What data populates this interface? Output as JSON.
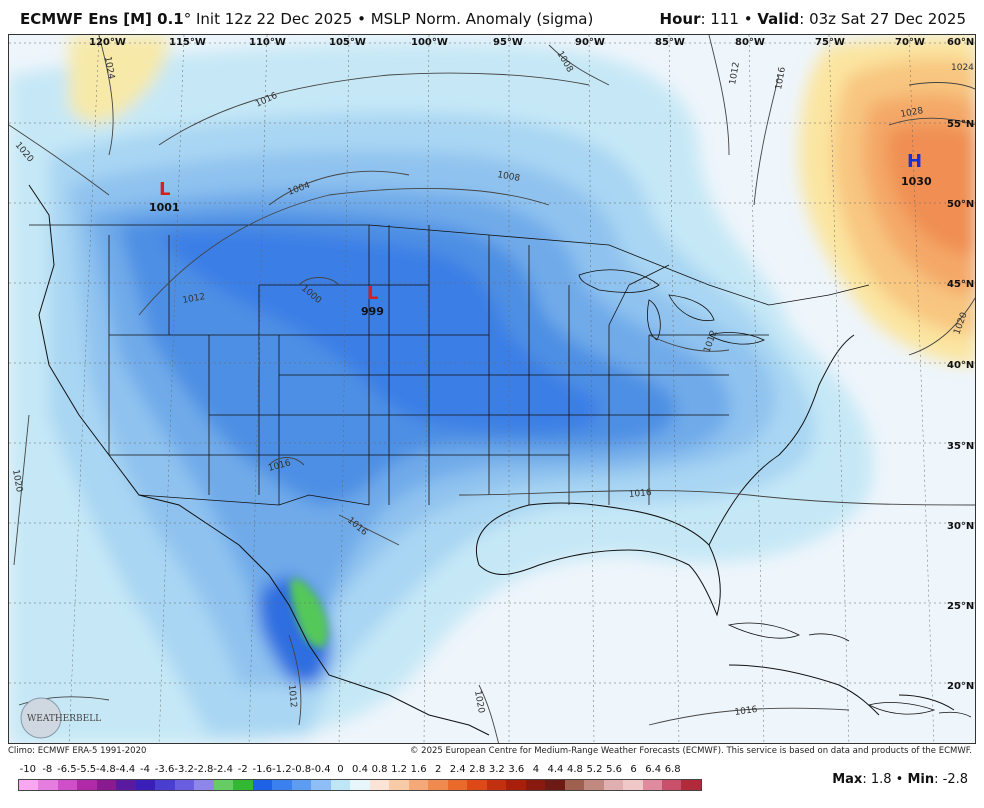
{
  "header": {
    "model": "ECMWF Ens [M] 0.1",
    "degree": "°",
    "init": " Init 12z 22 Dec 2025",
    "sep1": " • ",
    "field": "MSLP Norm. Anomaly (sigma)",
    "hour_label": "Hour",
    "hour_value": ": 111",
    "sep2": " • ",
    "valid_label": "Valid",
    "valid_value": ": 03z Sat 27 Dec 2025"
  },
  "map": {
    "lon_labels": [
      "120°W",
      "115°W",
      "110°W",
      "105°W",
      "100°W",
      "95°W",
      "90°W",
      "85°W",
      "80°W",
      "75°W",
      "70°W"
    ],
    "lat_labels": [
      "60°N",
      "55°N",
      "50°N",
      "45°N",
      "40°N",
      "35°N",
      "30°N",
      "25°N",
      "20°N"
    ],
    "isobar_labels": [
      "1024",
      "1020",
      "1016",
      "1012",
      "1008",
      "1004",
      "1000",
      "1008",
      "1012",
      "1016",
      "1024",
      "1028",
      "1020",
      "1020",
      "1016",
      "1012",
      "1016",
      "1016",
      "1012",
      "1020",
      "1016"
    ],
    "pressure_centers": [
      {
        "letter": "L",
        "value": "1001",
        "color": "#d42020"
      },
      {
        "letter": "L",
        "value": "999",
        "color": "#d42020"
      },
      {
        "letter": "H",
        "value": "1030",
        "color": "#1a2fd6"
      }
    ],
    "logo": "WEATHERBELL"
  },
  "footer": {
    "climo": "Climo: ECMWF ERA-5 1991-2020",
    "copyright": "© 2025 European Centre for Medium-Range Weather Forecasts (ECMWF). This service is based on data and products of the ECMWF."
  },
  "colorbar": {
    "labels": [
      "-10",
      "-8",
      "-6.5",
      "-5.5",
      "-4.8",
      "-4.4",
      "-4",
      "-3.6",
      "-3.2",
      "-2.8",
      "-2.4",
      "-2",
      "-1.6",
      "-1.2",
      "-0.8",
      "-0.4",
      "0",
      "0.4",
      "0.8",
      "1.2",
      "1.6",
      "2",
      "2.4",
      "2.8",
      "3.2",
      "3.6",
      "4",
      "4.4",
      "4.8",
      "5.2",
      "5.6",
      "6",
      "6.4",
      "6.8"
    ],
    "colors": [
      "#f7a8f0",
      "#e57ee0",
      "#cf4fc9",
      "#b02aa8",
      "#8a1a8f",
      "#5a1aa0",
      "#3a1eb8",
      "#4a3ed0",
      "#6a5ee0",
      "#8f86ea",
      "#66cc66",
      "#33b833",
      "#1e62e8",
      "#3a80ee",
      "#5d9cf0",
      "#8fbdf5",
      "#bfe6f7",
      "#e6f6fb",
      "#fbe3d6",
      "#f7caa8",
      "#f5a878",
      "#f08a4e",
      "#ea6a2c",
      "#dd4a18",
      "#c33010",
      "#a8200c",
      "#8a1a10",
      "#6e1a14",
      "#a06050",
      "#c08a80",
      "#e0b0b0",
      "#f0c8c8",
      "#e08aa0",
      "#c8506a",
      "#b02a3a"
    ]
  },
  "stats": {
    "max_label": "Max",
    "max_value": ": 1.8",
    "sep": " • ",
    "min_label": "Min",
    "min_value": ": -2.8"
  }
}
